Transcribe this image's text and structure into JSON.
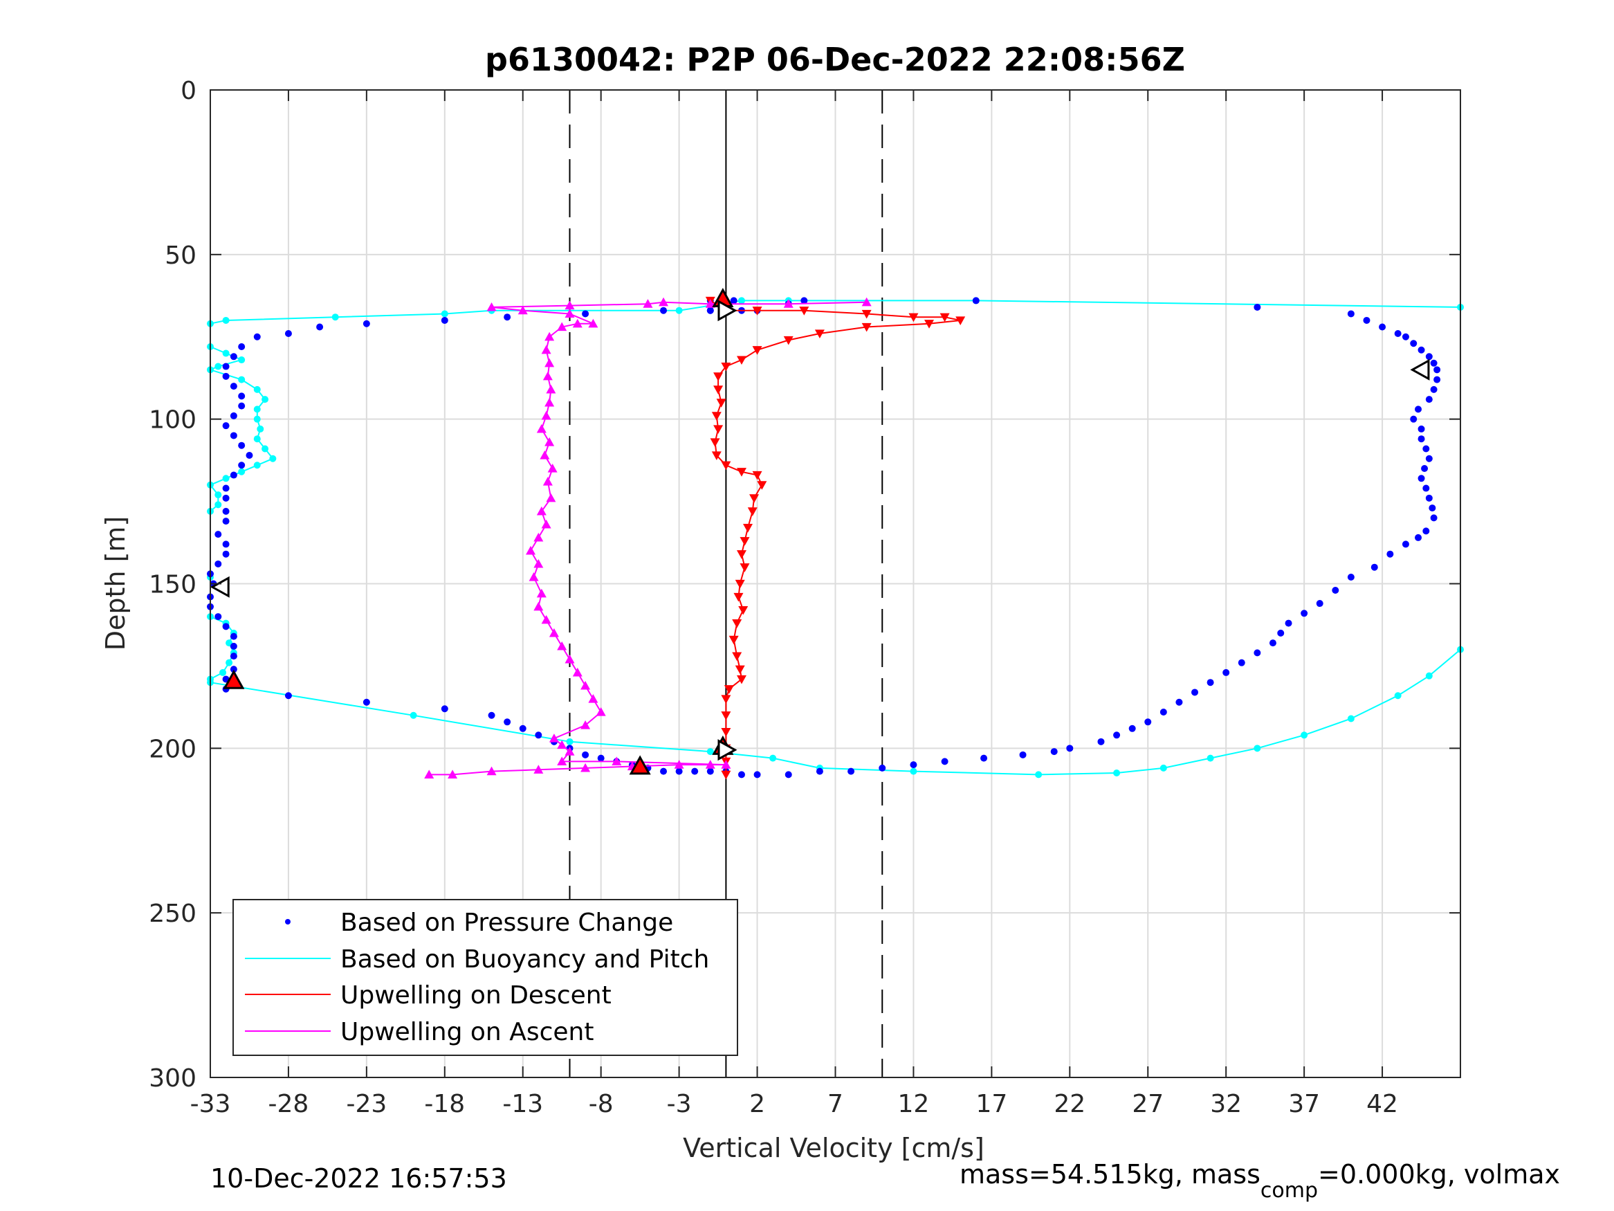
{
  "chart_data": {
    "type": "scatter",
    "title": "p6130042: P2P 06-Dec-2022 22:08:56Z",
    "xlabel": "Vertical Velocity [cm/s]",
    "ylabel": "Depth [m]",
    "xlim": [
      -33,
      47
    ],
    "ylim": [
      0,
      300
    ],
    "y_reversed": true,
    "grid": true,
    "xticks": [
      -33,
      -28,
      -23,
      -18,
      -13,
      -8,
      -3,
      2,
      7,
      12,
      17,
      22,
      27,
      32,
      37,
      42
    ],
    "yticks": [
      0,
      50,
      100,
      150,
      200,
      250,
      300
    ],
    "reference_lines": [
      {
        "x": -10,
        "style": "dashed",
        "color": "#000000"
      },
      {
        "x": 0,
        "style": "solid",
        "color": "#000000"
      },
      {
        "x": 10,
        "style": "dashed",
        "color": "#000000"
      }
    ],
    "legend_position": "bottom-left",
    "series": [
      {
        "name": "Based on Pressure Change",
        "color": "#0000ff",
        "marker": "dot",
        "line": false,
        "points": [
          [
            16,
            64
          ],
          [
            34,
            66
          ],
          [
            40,
            68
          ],
          [
            41,
            70
          ],
          [
            42,
            72
          ],
          [
            43,
            74
          ],
          [
            43.5,
            75
          ],
          [
            44,
            77
          ],
          [
            44.5,
            79
          ],
          [
            45,
            81
          ],
          [
            45.3,
            83
          ],
          [
            45.5,
            85
          ],
          [
            45.5,
            88
          ],
          [
            45.3,
            91
          ],
          [
            45,
            94
          ],
          [
            44.3,
            97
          ],
          [
            44,
            100
          ],
          [
            44.5,
            103
          ],
          [
            44.5,
            106
          ],
          [
            44.8,
            109
          ],
          [
            45,
            112
          ],
          [
            44.7,
            115
          ],
          [
            44.5,
            118
          ],
          [
            44.8,
            121
          ],
          [
            45,
            124
          ],
          [
            45.2,
            127
          ],
          [
            45.3,
            130
          ],
          [
            44.8,
            134
          ],
          [
            44.3,
            136
          ],
          [
            43.5,
            138
          ],
          [
            42.5,
            141
          ],
          [
            41.5,
            145
          ],
          [
            40,
            148
          ],
          [
            39,
            152
          ],
          [
            38,
            156
          ],
          [
            37,
            159
          ],
          [
            36,
            162
          ],
          [
            35.5,
            165
          ],
          [
            35,
            168
          ],
          [
            34,
            171
          ],
          [
            33,
            174
          ],
          [
            32,
            177
          ],
          [
            31,
            180
          ],
          [
            30,
            183
          ],
          [
            29,
            186
          ],
          [
            28,
            189
          ],
          [
            27,
            192
          ],
          [
            26,
            194
          ],
          [
            25,
            196
          ],
          [
            24,
            198
          ],
          [
            22,
            200
          ],
          [
            21,
            201
          ],
          [
            19,
            202
          ],
          [
            16.5,
            203
          ],
          [
            14,
            204
          ],
          [
            12,
            205
          ],
          [
            10,
            206
          ],
          [
            8,
            207
          ],
          [
            6,
            207
          ],
          [
            4,
            208
          ],
          [
            2,
            208
          ],
          [
            1,
            208
          ],
          [
            0,
            207
          ],
          [
            -1,
            207
          ],
          [
            -2,
            207
          ],
          [
            -3,
            207
          ],
          [
            -4,
            207
          ],
          [
            -5,
            206
          ],
          [
            -6,
            205
          ],
          [
            -7,
            204
          ],
          [
            -8,
            203
          ],
          [
            -9,
            202
          ],
          [
            -10,
            200
          ],
          [
            -11,
            198
          ],
          [
            -12,
            196
          ],
          [
            -13,
            194
          ],
          [
            -14,
            192
          ],
          [
            -15,
            190
          ],
          [
            -18,
            188
          ],
          [
            -23,
            186
          ],
          [
            -28,
            184
          ],
          [
            -32,
            182
          ],
          [
            -32,
            179
          ],
          [
            -31.5,
            176
          ],
          [
            -31.5,
            172
          ],
          [
            -31.5,
            169
          ],
          [
            -31.5,
            166
          ],
          [
            -32,
            163
          ],
          [
            -32.5,
            160
          ],
          [
            -33,
            157
          ],
          [
            -33,
            154
          ],
          [
            -32.8,
            150
          ],
          [
            -33,
            147
          ],
          [
            -32.5,
            144
          ],
          [
            -32,
            141
          ],
          [
            -32,
            138
          ],
          [
            -32.5,
            135
          ],
          [
            -32,
            131
          ],
          [
            -32,
            128
          ],
          [
            -32,
            124
          ],
          [
            -32,
            121
          ],
          [
            -31.5,
            117
          ],
          [
            -31,
            114
          ],
          [
            -30.5,
            111
          ],
          [
            -31,
            108
          ],
          [
            -31.5,
            105
          ],
          [
            -32,
            102
          ],
          [
            -31.5,
            99
          ],
          [
            -31,
            96
          ],
          [
            -31,
            93
          ],
          [
            -31.5,
            90
          ],
          [
            -32,
            87
          ],
          [
            -32,
            84
          ],
          [
            -31.5,
            81
          ],
          [
            -31,
            78
          ],
          [
            -30,
            75
          ],
          [
            -28,
            74
          ],
          [
            -26,
            72
          ],
          [
            -23,
            71
          ],
          [
            -18,
            70
          ],
          [
            -14,
            69
          ],
          [
            -9,
            68
          ],
          [
            -4,
            67
          ],
          [
            -1,
            67
          ],
          [
            1,
            67
          ],
          [
            2,
            67
          ],
          [
            4,
            65
          ],
          [
            5,
            64
          ],
          [
            -1,
            64
          ],
          [
            0.5,
            64
          ],
          [
            -1,
            67
          ]
        ]
      },
      {
        "name": "Based on Buoyancy and Pitch",
        "color": "#00ffff",
        "marker": "dot",
        "line": true,
        "points": [
          [
            47,
            66
          ],
          [
            16,
            64
          ],
          [
            4,
            64
          ],
          [
            1,
            64
          ],
          [
            -3,
            67
          ],
          [
            -15,
            67
          ],
          [
            -18,
            68
          ],
          [
            -25,
            69
          ],
          [
            -32,
            70
          ],
          [
            -33,
            71
          ],
          [
            -33,
            78
          ],
          [
            -32,
            80
          ],
          [
            -31,
            82
          ],
          [
            -32.5,
            84
          ],
          [
            -33,
            85
          ],
          [
            -31,
            88
          ],
          [
            -30,
            91
          ],
          [
            -29.5,
            94
          ],
          [
            -30,
            97
          ],
          [
            -30,
            100
          ],
          [
            -29.8,
            103
          ],
          [
            -30,
            106
          ],
          [
            -29.5,
            109
          ],
          [
            -29,
            112
          ],
          [
            -30,
            114
          ],
          [
            -31,
            116
          ],
          [
            -32,
            118
          ],
          [
            -33,
            120
          ],
          [
            -32.5,
            123
          ],
          [
            -32.5,
            126
          ],
          [
            -33,
            128
          ],
          [
            -33,
            148
          ],
          [
            -33,
            160
          ],
          [
            -32,
            162
          ],
          [
            -31.5,
            165
          ],
          [
            -31.8,
            168
          ],
          [
            -31.5,
            171
          ],
          [
            -31.8,
            174
          ],
          [
            -32.2,
            177
          ],
          [
            -33,
            179
          ],
          [
            -33,
            180
          ],
          [
            -20,
            190
          ],
          [
            -10,
            198
          ],
          [
            -1,
            201
          ],
          [
            3,
            203
          ],
          [
            6,
            206
          ],
          [
            12,
            207
          ],
          [
            20,
            208
          ],
          [
            25,
            207.5
          ],
          [
            28,
            206
          ],
          [
            31,
            203
          ],
          [
            34,
            200
          ],
          [
            37,
            196
          ],
          [
            40,
            191
          ],
          [
            43,
            184
          ],
          [
            45,
            178
          ],
          [
            47,
            170
          ]
        ]
      },
      {
        "name": "Upwelling on Descent",
        "color": "#ff0000",
        "marker": "triangle-down",
        "line": true,
        "points": [
          [
            -1,
            64
          ],
          [
            0,
            67
          ],
          [
            2,
            67
          ],
          [
            5,
            67
          ],
          [
            9,
            68
          ],
          [
            12,
            69
          ],
          [
            14,
            69
          ],
          [
            15,
            70
          ],
          [
            13,
            71
          ],
          [
            9,
            72
          ],
          [
            6,
            74
          ],
          [
            4,
            76
          ],
          [
            2,
            79
          ],
          [
            1,
            82
          ],
          [
            0,
            84
          ],
          [
            -0.5,
            87
          ],
          [
            -0.5,
            91
          ],
          [
            -0.3,
            95
          ],
          [
            -0.6,
            99
          ],
          [
            -0.5,
            103
          ],
          [
            -0.7,
            107
          ],
          [
            -0.6,
            111
          ],
          [
            0,
            114
          ],
          [
            1,
            116
          ],
          [
            2,
            117
          ],
          [
            2.3,
            120
          ],
          [
            1.8,
            124
          ],
          [
            1.7,
            128
          ],
          [
            1.4,
            133
          ],
          [
            1.2,
            137
          ],
          [
            1,
            141
          ],
          [
            1.2,
            145
          ],
          [
            0.9,
            150
          ],
          [
            0.8,
            154
          ],
          [
            1.1,
            158
          ],
          [
            0.7,
            162
          ],
          [
            0.5,
            167
          ],
          [
            0.7,
            172
          ],
          [
            0.9,
            176
          ],
          [
            1,
            179
          ],
          [
            0.2,
            182
          ],
          [
            0,
            185
          ],
          [
            0,
            190
          ],
          [
            0,
            195
          ],
          [
            0,
            200
          ],
          [
            0,
            201
          ],
          [
            0,
            204
          ],
          [
            0,
            208
          ]
        ]
      },
      {
        "name": "Upwelling on Ascent",
        "color": "#ff00ff",
        "marker": "triangle-up",
        "line": true,
        "points": [
          [
            -19,
            208
          ],
          [
            -17.5,
            208
          ],
          [
            -15,
            207
          ],
          [
            -12,
            206.5
          ],
          [
            -9,
            206
          ],
          [
            -6,
            205.5
          ],
          [
            -3,
            205
          ],
          [
            -1,
            205
          ],
          [
            0,
            205
          ],
          [
            -7,
            204
          ],
          [
            -10.5,
            204
          ],
          [
            -10,
            201
          ],
          [
            -10.5,
            199
          ],
          [
            -11,
            197
          ],
          [
            -9,
            193
          ],
          [
            -8,
            189
          ],
          [
            -8.5,
            185
          ],
          [
            -9,
            181
          ],
          [
            -9.5,
            177
          ],
          [
            -10,
            173
          ],
          [
            -10.5,
            169
          ],
          [
            -11,
            165
          ],
          [
            -11.5,
            161
          ],
          [
            -12,
            157
          ],
          [
            -11.8,
            153
          ],
          [
            -12.3,
            148
          ],
          [
            -12,
            144
          ],
          [
            -12.5,
            140
          ],
          [
            -12,
            136
          ],
          [
            -11.5,
            132
          ],
          [
            -11.8,
            128
          ],
          [
            -11.2,
            124
          ],
          [
            -11.4,
            119
          ],
          [
            -11.1,
            115
          ],
          [
            -11.6,
            111
          ],
          [
            -11.3,
            107
          ],
          [
            -11.8,
            103
          ],
          [
            -11.5,
            99
          ],
          [
            -11.3,
            95
          ],
          [
            -11.2,
            91
          ],
          [
            -11.4,
            87
          ],
          [
            -11.3,
            83
          ],
          [
            -11.5,
            79
          ],
          [
            -11.3,
            75
          ],
          [
            -10.5,
            72
          ],
          [
            -9.5,
            71
          ],
          [
            -8.5,
            71
          ],
          [
            -10,
            68
          ],
          [
            -13,
            67
          ],
          [
            -15,
            66
          ],
          [
            -10,
            65.5
          ],
          [
            -5,
            65
          ],
          [
            -4,
            64.5
          ],
          [
            -1,
            65
          ],
          [
            4,
            65
          ],
          [
            9,
            64.5
          ]
        ]
      }
    ],
    "event_markers": [
      {
        "x": -0.2,
        "y": 63.5,
        "shape": "triangle-up",
        "fill": "#ff0000"
      },
      {
        "x": 0,
        "y": 67,
        "shape": "triangle-right",
        "fill": "#ffffff"
      },
      {
        "x": 44.5,
        "y": 85,
        "shape": "triangle-left",
        "fill": "#ffffff"
      },
      {
        "x": -32.3,
        "y": 151,
        "shape": "triangle-left",
        "fill": "#ffffff"
      },
      {
        "x": -31.5,
        "y": 179.5,
        "shape": "triangle-up",
        "fill": "#ff0000"
      },
      {
        "x": -0.2,
        "y": 199.5,
        "shape": "triangle-up",
        "fill": "#ff0000"
      },
      {
        "x": 0,
        "y": 200.5,
        "shape": "triangle-right",
        "fill": "#ffffff"
      },
      {
        "x": -5.5,
        "y": 205.5,
        "shape": "triangle-up",
        "fill": "#ff0000"
      }
    ]
  },
  "footer": {
    "timestamp": "10-Dec-2022 16:57:53",
    "mass_text": "mass=54.515kg, mass",
    "mass_sub": "comp",
    "mass_tail": "=0.000kg, volmax"
  }
}
